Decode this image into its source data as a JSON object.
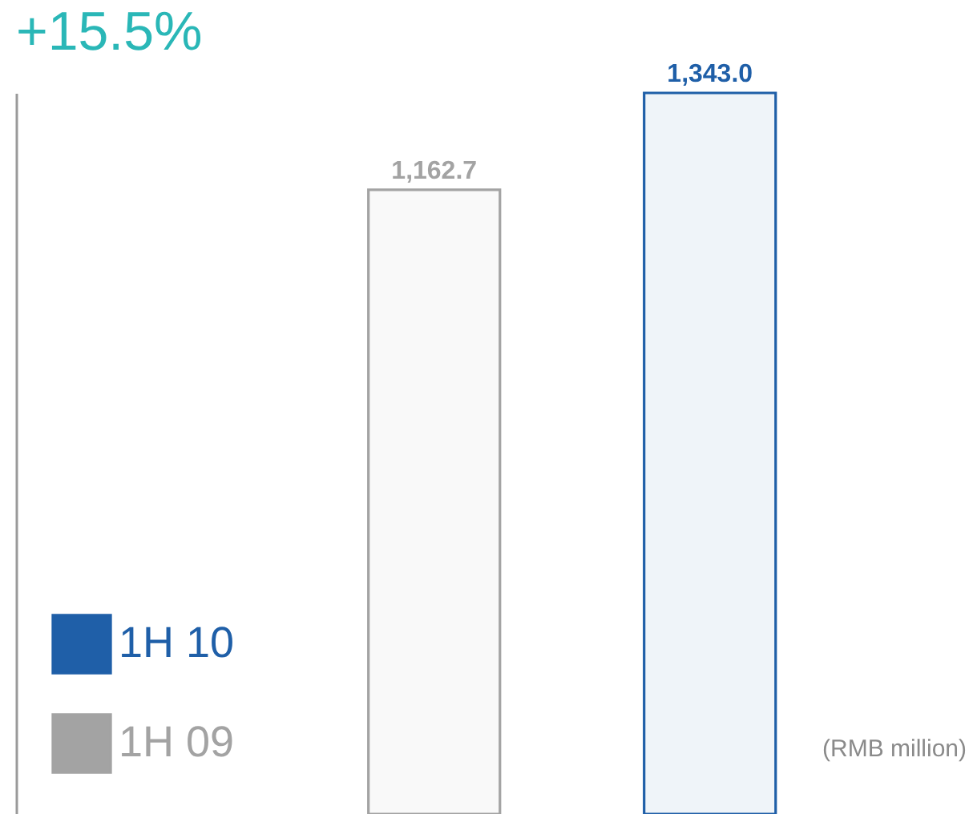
{
  "chart_data": {
    "type": "bar",
    "title": "+15.5%",
    "categories": [
      null,
      null
    ],
    "series": [
      {
        "name": "1H 10",
        "color": "#1f5fa8",
        "values": [
          null,
          1343.0
        ],
        "value_labels": [
          null,
          "1,343.0"
        ]
      },
      {
        "name": "1H 09",
        "color": "#a3a3a3",
        "values": [
          1162.7,
          null
        ],
        "value_labels": [
          "1,162.7",
          null
        ]
      }
    ],
    "stacked": true,
    "legend": "bottom left",
    "tick_labels": false,
    "grid": false,
    "annotations": [
      "(RMB million)"
    ]
  }
}
